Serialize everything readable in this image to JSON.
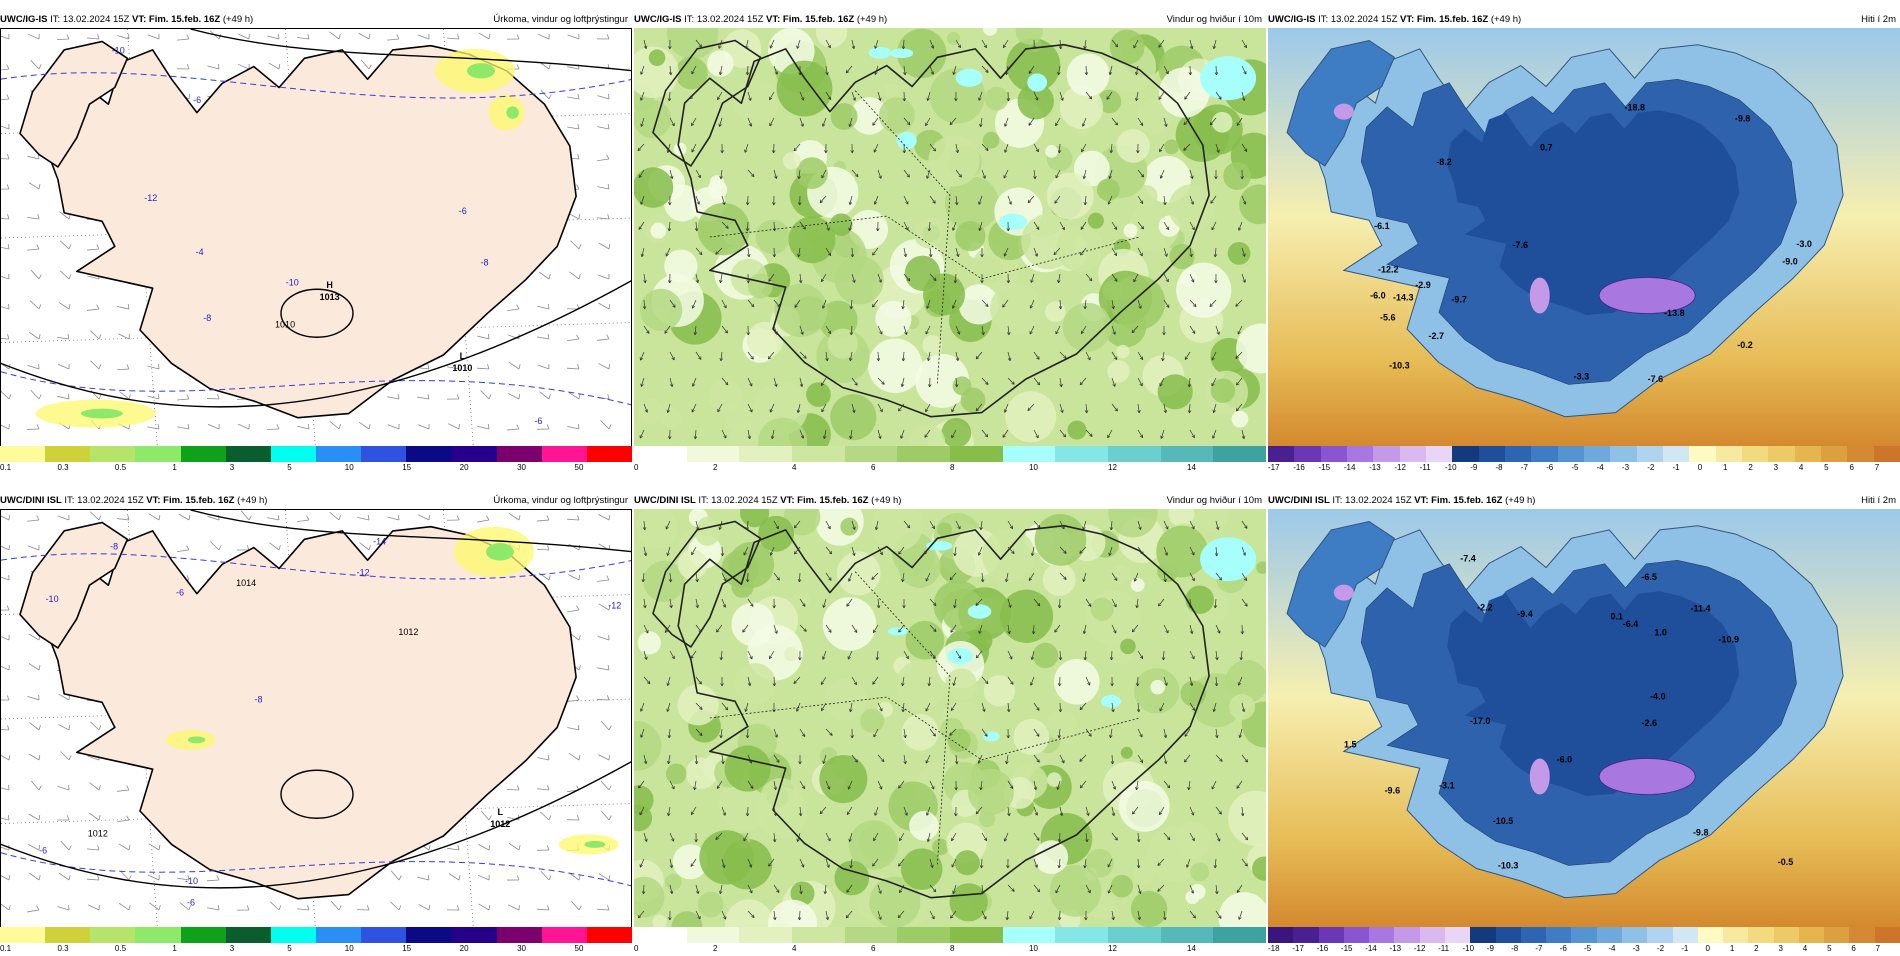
{
  "panels": [
    {
      "id": "p1",
      "model": "UWC/IG-IS",
      "it_label": "IT:",
      "it": "13.02.2024 15Z",
      "vt_label": "VT:",
      "vt": "Fim. 15.feb. 16Z",
      "lead": "(+49 h)",
      "title": "Úrkoma, vindur og loftþrýstingur",
      "type": "precip",
      "pressure_centers": [
        {
          "letter": "H",
          "value": "1013"
        },
        {
          "letter": "L",
          "value": "1010"
        }
      ],
      "contour_labels": [
        "-10",
        "-12",
        "-10",
        "-8",
        "-6",
        "-6",
        "1010",
        "-4",
        "-8",
        "-6"
      ]
    },
    {
      "id": "p2",
      "model": "UWC/IG-IS",
      "it_label": "IT:",
      "it": "13.02.2024 15Z",
      "vt_label": "VT:",
      "vt": "Fim. 15.feb. 16Z",
      "lead": "(+49 h)",
      "title": "Vindur og hviður í 10m",
      "type": "wind"
    },
    {
      "id": "p3",
      "model": "UWC/IG-IS",
      "it_label": "IT:",
      "it": "13.02.2024 15Z",
      "vt_label": "VT:",
      "vt": "Fim. 15.feb. 16Z",
      "lead": "(+49 h)",
      "title": "Hiti í 2m",
      "type": "temp",
      "temp_labels": [
        "-13.8",
        "-3.0",
        "-7.6",
        "-6.1",
        "-6.0",
        "-3.3",
        "-0.2",
        "-7.6",
        "-9.0",
        "0.7",
        "-2.9",
        "-5.6",
        "-10.3",
        "-9.8",
        "-2.7",
        "-8.2",
        "-14.3",
        "-18.8",
        "-12.2",
        "-9.7"
      ]
    },
    {
      "id": "p4",
      "model": "UWC/DINI ISL",
      "it_label": "IT:",
      "it": "13.02.2024 15Z",
      "vt_label": "VT:",
      "vt": "Fim. 15.feb. 16Z",
      "lead": "(+49 h)",
      "title": "Úrkoma, vindur og loftþrýstingur",
      "type": "precip",
      "pressure_centers": [
        {
          "letter": "L",
          "value": "1012"
        }
      ],
      "contour_labels": [
        "-12",
        "-14",
        "-12",
        "1014",
        "-10",
        "-10",
        "-8",
        "-8",
        "1012",
        "-6",
        "-6",
        "1012",
        "-6"
      ]
    },
    {
      "id": "p5",
      "model": "UWC/DINI ISL",
      "it_label": "IT:",
      "it": "13.02.2024 15Z",
      "vt_label": "VT:",
      "vt": "Fim. 15.feb. 16Z",
      "lead": "(+49 h)",
      "title": "Vindur og hviður í 10m",
      "type": "wind"
    },
    {
      "id": "p6",
      "model": "UWC/DINI ISL",
      "it_label": "IT:",
      "it": "13.02.2024 15Z",
      "vt_label": "VT:",
      "vt": "Fim. 15.feb. 16Z",
      "lead": "(+49 h)",
      "title": "Hiti í 2m",
      "type": "temp",
      "temp_labels": [
        "-10.9",
        "-9.4",
        "-3.1",
        "-6.5",
        "-6.0",
        "-7.4",
        "0.1",
        "-9.8",
        "-2.2",
        "-0.5",
        "-6.4",
        "-2.6",
        "-9.6",
        "-10.3",
        "-4.0",
        "-10.5",
        "-17.0",
        "1.0",
        "1.5",
        "-11.4"
      ]
    }
  ],
  "colorbars": {
    "precip": {
      "colors": [
        "#fffb9a",
        "#cfd13a",
        "#b6e46b",
        "#8ee96a",
        "#0fa11a",
        "#0a5e2e",
        "#00ffee",
        "#2a8ef5",
        "#2f52e0",
        "#0b0a85",
        "#260088",
        "#7b006d",
        "#ff1493",
        "#ff0000"
      ],
      "ticks": [
        "0.1",
        "0.3",
        "0.5",
        "1",
        "3",
        "5",
        "10",
        "15",
        "20",
        "30",
        "50"
      ]
    },
    "wind": {
      "colors": [
        "#ffffff",
        "#f1f9dc",
        "#e2f1bf",
        "#cde6a0",
        "#b4d883",
        "#9dcb66",
        "#86bd4b",
        "#a7fffc",
        "#84e6e6",
        "#6bcfd0",
        "#56b8b8",
        "#3ea2a0"
      ],
      "ticks": [
        "0",
        "2",
        "4",
        "6",
        "8",
        "10",
        "12",
        "14"
      ]
    },
    "temp_top": {
      "colors": [
        "#4a1f8f",
        "#6a37b5",
        "#8a55d1",
        "#a878e0",
        "#c49ae8",
        "#d9b9f0",
        "#e9d6f6",
        "#123a7c",
        "#1f4f9a",
        "#2e65b3",
        "#3e7cc4",
        "#5594d1",
        "#6fa9dc",
        "#8fc0e6",
        "#b0d4ef",
        "#d1e7f3",
        "#fff9c4",
        "#f7eaa0",
        "#f1da80",
        "#ecca65",
        "#e5b650",
        "#dca040",
        "#d48a34",
        "#cd752b"
      ],
      "ticks": [
        "-17",
        "-16",
        "-15",
        "-14",
        "-13",
        "-12",
        "-11",
        "-10",
        "-9",
        "-8",
        "-7",
        "-6",
        "-5",
        "-4",
        "-3",
        "-2",
        "-1",
        "0",
        "1",
        "2",
        "3",
        "4",
        "5",
        "6",
        "7"
      ]
    },
    "temp_bottom": {
      "colors": [
        "#3a157c",
        "#4a1f8f",
        "#6a37b5",
        "#8a55d1",
        "#a878e0",
        "#c49ae8",
        "#d9b9f0",
        "#e9d6f6",
        "#123a7c",
        "#1f4f9a",
        "#2e65b3",
        "#3e7cc4",
        "#5594d1",
        "#6fa9dc",
        "#8fc0e6",
        "#b0d4ef",
        "#d1e7f3",
        "#fff9c4",
        "#f7eaa0",
        "#f1da80",
        "#ecca65",
        "#e5b650",
        "#dca040",
        "#d48a34",
        "#cd752b"
      ],
      "ticks": [
        "-18",
        "-17",
        "-16",
        "-15",
        "-14",
        "-13",
        "-12",
        "-11",
        "-10",
        "-9",
        "-8",
        "-7",
        "-6",
        "-5",
        "-4",
        "-3",
        "-2",
        "-1",
        "0",
        "1",
        "2",
        "3",
        "4",
        "5",
        "6",
        "7"
      ]
    }
  },
  "colors": {
    "land": "#fbe9dc",
    "precip_light": "#fff86b",
    "wind_base": "#c9e49b",
    "temp_sea": "#f0d88c",
    "temp_land": "#2e62ad"
  }
}
